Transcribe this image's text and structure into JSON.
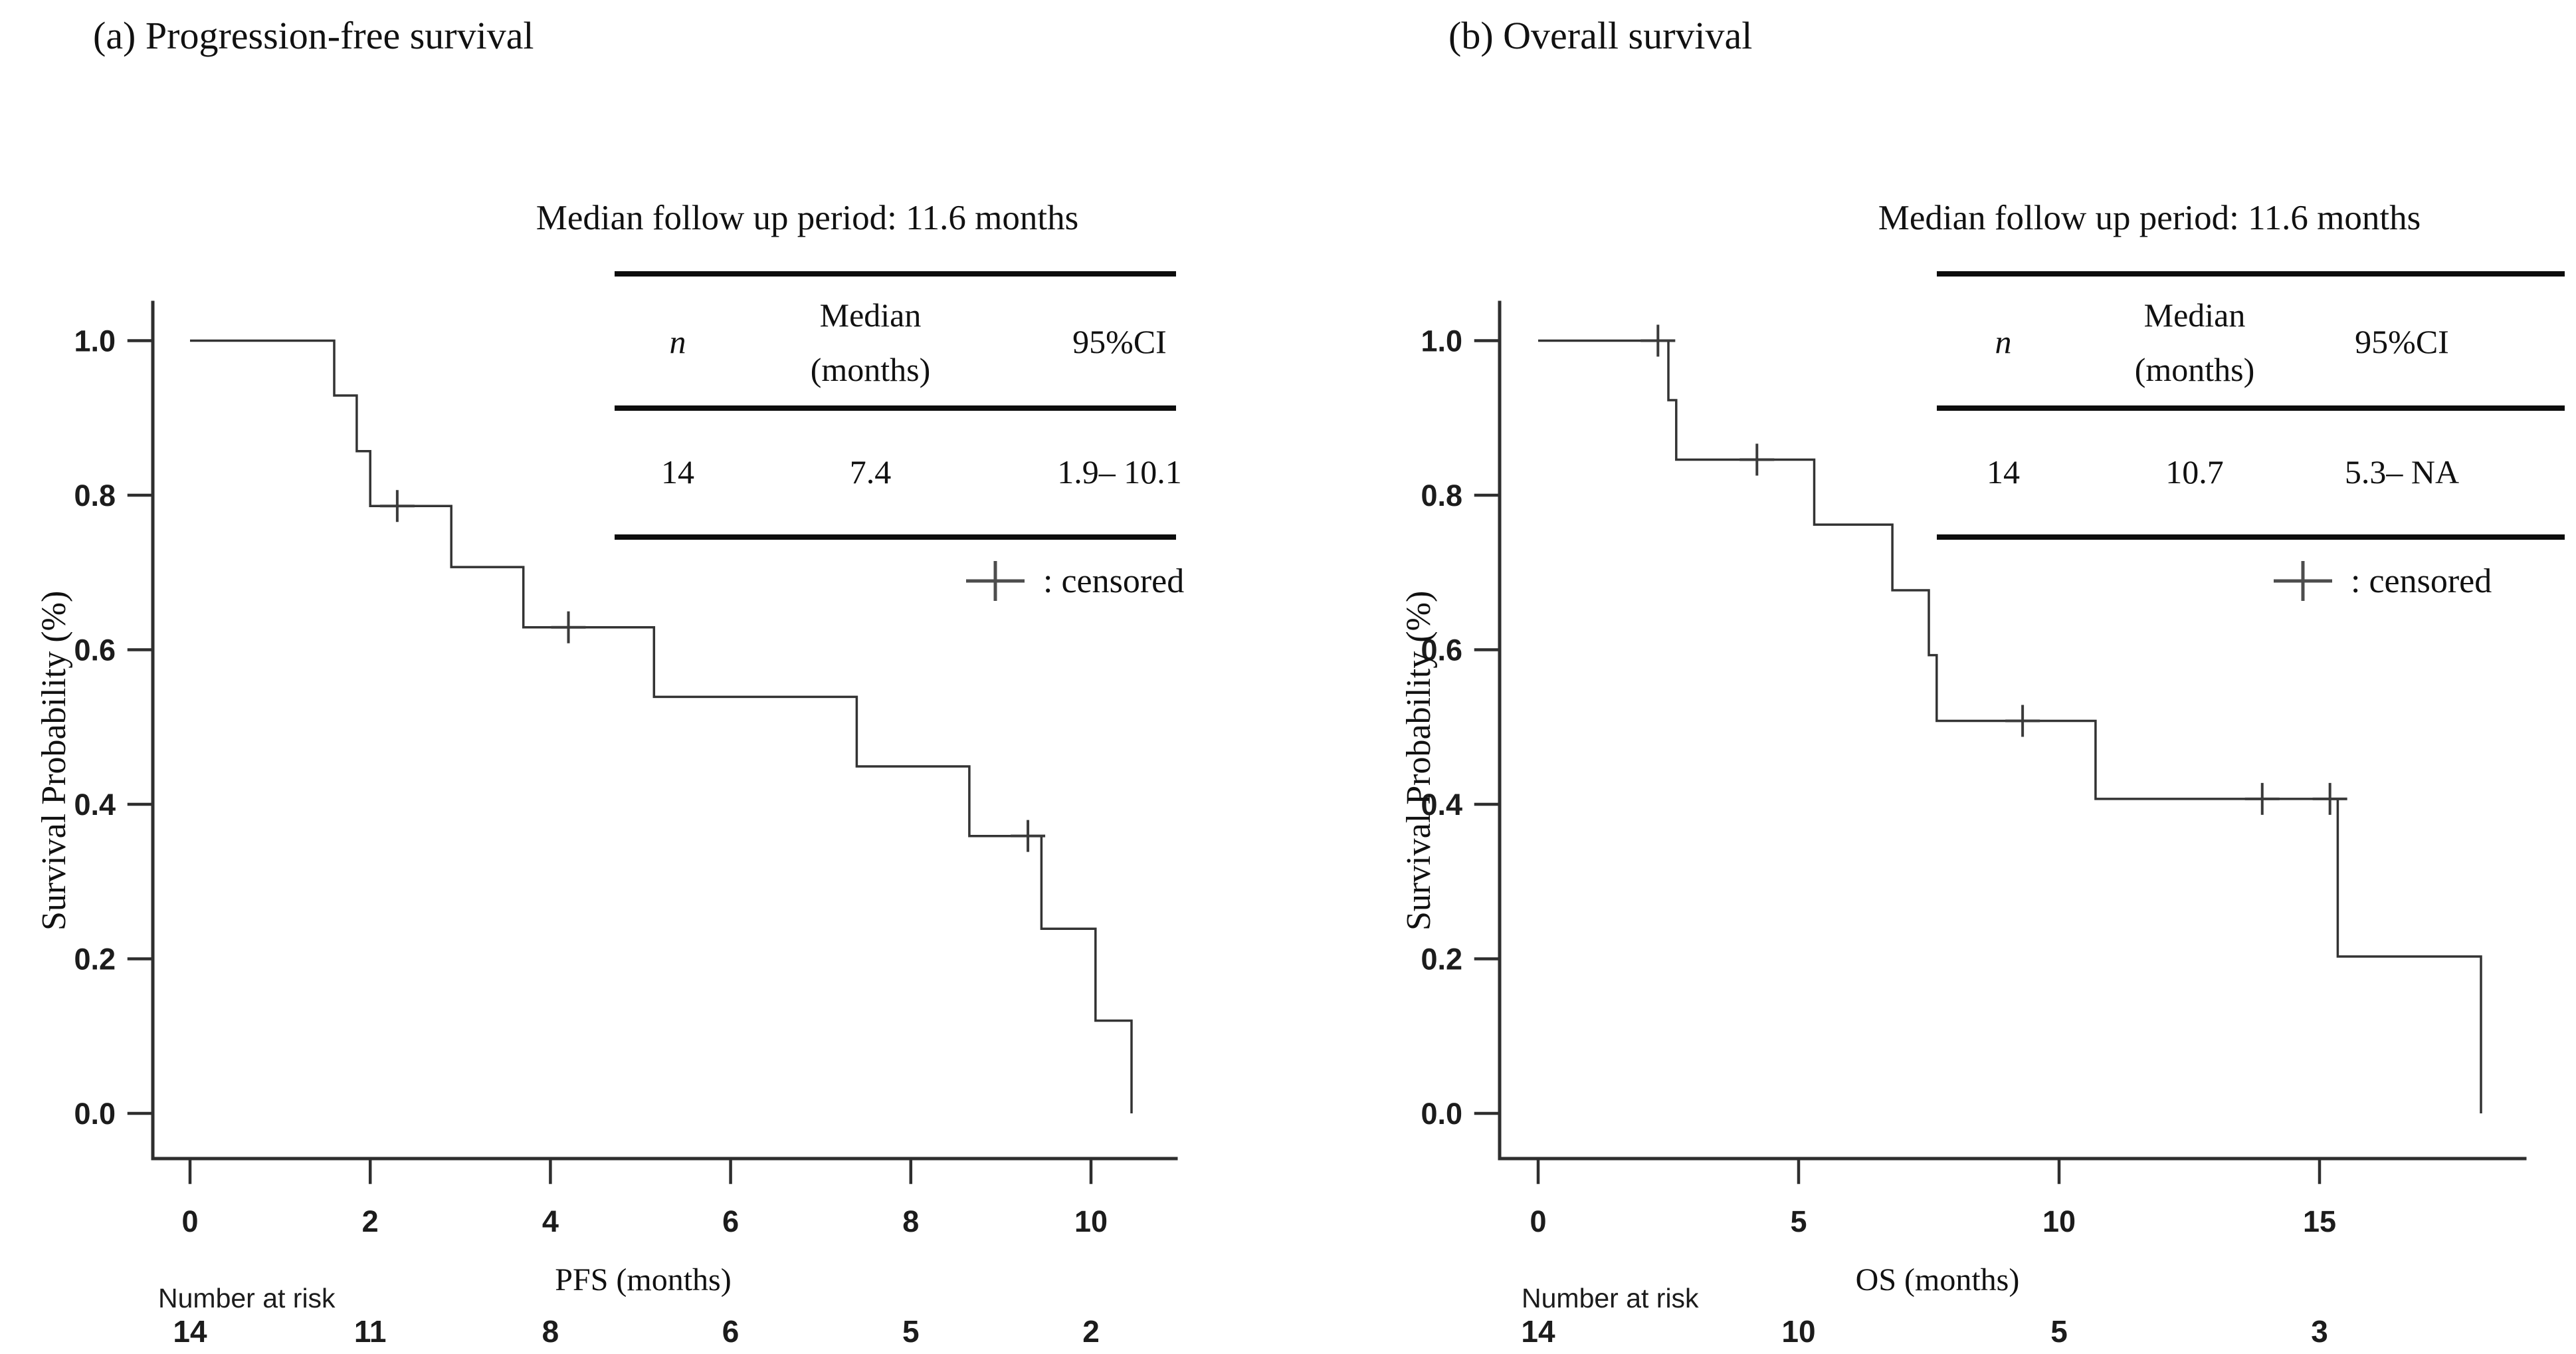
{
  "figure": {
    "background": "#ffffff",
    "text_color": "#111111",
    "axis_color": "#2e2e2e",
    "curve_color": "#333333",
    "censor_color": "#3a3a3a"
  },
  "chart_data": [
    {
      "type": "line",
      "variant": "kaplan_meier_step",
      "panel": "a",
      "title": "(a) Progression-free survival",
      "annotation": "Median follow up period: 11.6 months",
      "xlabel": "PFS (months)",
      "ylabel": "Survival Probability (%)",
      "xlim": [
        0,
        11.2
      ],
      "ylim": [
        0,
        1.05
      ],
      "xticks": [
        0,
        2,
        4,
        6,
        8,
        10
      ],
      "yticks": [
        "0.0",
        "0.2",
        "0.4",
        "0.6",
        "0.8",
        "1.0"
      ],
      "grid": false,
      "legend_symbol": "+",
      "legend_label": ": censored",
      "series": [
        {
          "name": "Progression-free survival",
          "color": "#333333",
          "points": [
            [
              0,
              1.0
            ],
            [
              1.6,
              1.0
            ],
            [
              1.6,
              0.929
            ],
            [
              1.85,
              0.929
            ],
            [
              1.85,
              0.857
            ],
            [
              2.0,
              0.857
            ],
            [
              2.0,
              0.786
            ],
            [
              2.9,
              0.786
            ],
            [
              2.9,
              0.707
            ],
            [
              3.7,
              0.707
            ],
            [
              3.7,
              0.629
            ],
            [
              5.15,
              0.629
            ],
            [
              5.15,
              0.539
            ],
            [
              7.4,
              0.539
            ],
            [
              7.4,
              0.449
            ],
            [
              8.65,
              0.449
            ],
            [
              8.65,
              0.359
            ],
            [
              9.45,
              0.359
            ],
            [
              9.45,
              0.239
            ],
            [
              10.05,
              0.239
            ],
            [
              10.05,
              0.12
            ],
            [
              10.45,
              0.12
            ],
            [
              10.45,
              0.0
            ]
          ]
        }
      ],
      "censored_marks": [
        [
          2.3,
          0.786
        ],
        [
          4.2,
          0.629
        ],
        [
          9.3,
          0.359
        ]
      ],
      "summary_table": {
        "header_n": "n",
        "header_median_line1": "Median",
        "header_median_line2": "(months)",
        "header_ci": "95%CI",
        "headers": [
          "n",
          "Median (months)",
          "95%CI"
        ],
        "rows": [
          [
            "14",
            "7.4",
            "1.9– 10.1"
          ]
        ]
      },
      "number_at_risk": {
        "label": "Number at risk",
        "times": [
          0,
          2,
          4,
          6,
          8,
          10
        ],
        "counts": [
          "14",
          "11",
          "8",
          "6",
          "5",
          "2"
        ]
      }
    },
    {
      "type": "line",
      "variant": "kaplan_meier_step",
      "panel": "b",
      "title": "(b) Overall survival",
      "annotation": "Median follow up period: 11.6 months",
      "xlabel": "OS (months)",
      "ylabel": "Survival Probability (%)",
      "xlim": [
        0,
        19.3
      ],
      "ylim": [
        0,
        1.05
      ],
      "xticks": [
        0,
        5,
        10,
        15
      ],
      "yticks": [
        "0.0",
        "0.2",
        "0.4",
        "0.6",
        "0.8",
        "1.0"
      ],
      "grid": false,
      "legend_symbol": "+",
      "legend_label": ": censored",
      "series": [
        {
          "name": "Overall survival",
          "color": "#333333",
          "points": [
            [
              0,
              1.0
            ],
            [
              2.5,
              1.0
            ],
            [
              2.5,
              0.923
            ],
            [
              2.65,
              0.923
            ],
            [
              2.65,
              0.846
            ],
            [
              5.3,
              0.846
            ],
            [
              5.3,
              0.762
            ],
            [
              6.8,
              0.762
            ],
            [
              6.8,
              0.677
            ],
            [
              7.5,
              0.677
            ],
            [
              7.5,
              0.593
            ],
            [
              7.65,
              0.593
            ],
            [
              7.65,
              0.508
            ],
            [
              10.7,
              0.508
            ],
            [
              10.7,
              0.407
            ],
            [
              15.35,
              0.407
            ],
            [
              15.35,
              0.203
            ],
            [
              18.1,
              0.203
            ],
            [
              18.1,
              0.0
            ]
          ]
        }
      ],
      "censored_marks": [
        [
          2.3,
          1.0
        ],
        [
          4.2,
          0.846
        ],
        [
          9.3,
          0.508
        ],
        [
          13.9,
          0.407
        ],
        [
          15.2,
          0.407
        ]
      ],
      "summary_table": {
        "header_n": "n",
        "header_median_line1": "Median",
        "header_median_line2": "(months)",
        "header_ci": "95%CI",
        "headers": [
          "n",
          "Median (months)",
          "95%CI"
        ],
        "rows": [
          [
            "14",
            "10.7",
            "5.3– NA"
          ]
        ]
      },
      "number_at_risk": {
        "label": "Number at risk",
        "times": [
          0,
          5,
          10,
          15
        ],
        "counts": [
          "14",
          "10",
          "5",
          "3"
        ]
      }
    }
  ]
}
